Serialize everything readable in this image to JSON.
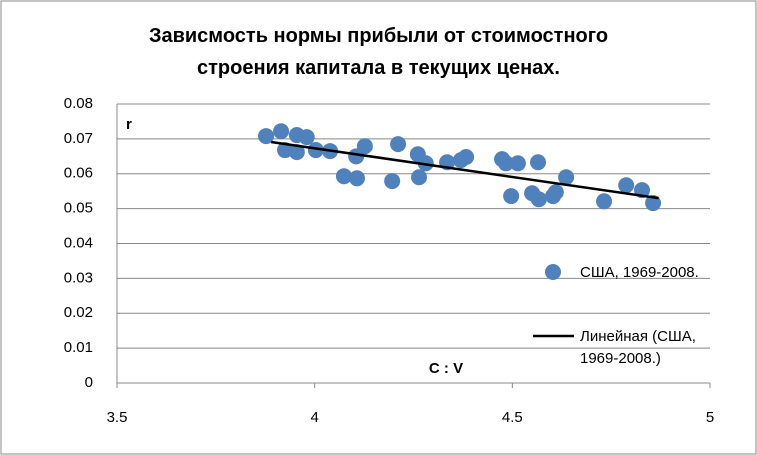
{
  "chart_data": {
    "type": "scatter",
    "title": "Зависмость нормы прибыли от стоимостного\nстроения капитала в текущих ценах.",
    "annotations": [
      "r",
      "C : V"
    ],
    "series": [
      {
        "name": "США, 1969-2008.",
        "color": "#4f81bd",
        "x": [
          3.877,
          3.915,
          3.925,
          3.955,
          3.955,
          3.98,
          4.003,
          4.039,
          4.074,
          4.105,
          4.107,
          4.127,
          4.196,
          4.211,
          4.261,
          4.264,
          4.281,
          4.335,
          4.37,
          4.383,
          4.474,
          4.484,
          4.497,
          4.514,
          4.55,
          4.565,
          4.567,
          4.603,
          4.61,
          4.636,
          4.732,
          4.788,
          4.828,
          4.856
        ],
        "values": [
          0.0708,
          0.0722,
          0.0668,
          0.0711,
          0.0662,
          0.0705,
          0.0668,
          0.0665,
          0.0593,
          0.065,
          0.0587,
          0.0679,
          0.0579,
          0.0685,
          0.0656,
          0.059,
          0.063,
          0.0633,
          0.0639,
          0.0648,
          0.0642,
          0.063,
          0.0536,
          0.063,
          0.0544,
          0.0633,
          0.0527,
          0.0536,
          0.0547,
          0.059,
          0.0521,
          0.0567,
          0.0553,
          0.0516
        ]
      },
      {
        "name": "Линейная (США, 1969-2008.)",
        "type": "line",
        "color": "#000000",
        "x": [
          3.89,
          4.87
        ],
        "values": [
          0.0691,
          0.053
        ]
      }
    ],
    "xlim": [
      3.5,
      5
    ],
    "xticks": [
      3.5,
      4,
      4.5,
      5
    ],
    "ylim": [
      0,
      0.08
    ],
    "yticks": [
      0,
      0.01,
      0.02,
      0.03,
      0.04,
      0.05,
      0.06,
      0.07,
      0.08
    ],
    "grid": true
  }
}
